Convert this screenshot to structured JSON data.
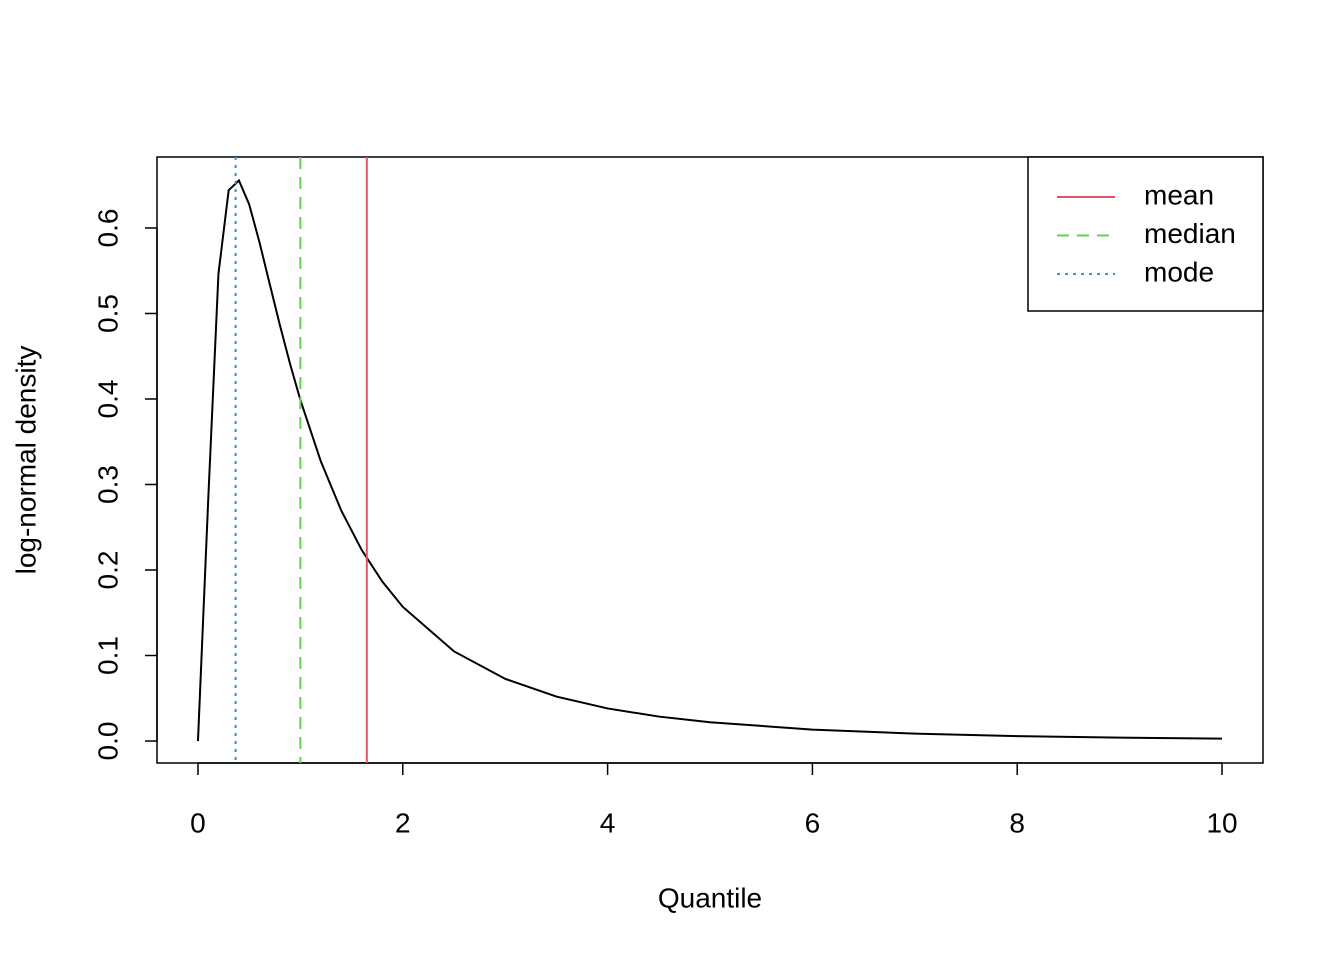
{
  "chart_data": {
    "type": "line",
    "x_label": "Quantile",
    "y_label": "log-normal density",
    "x": [
      0,
      0.1,
      0.2,
      0.3,
      0.4,
      0.5,
      0.6,
      0.7,
      0.8,
      0.9,
      1.0,
      1.2,
      1.4,
      1.6,
      1.8,
      2.0,
      2.5,
      3,
      3.5,
      4,
      4.5,
      5,
      6,
      7,
      8,
      9,
      10
    ],
    "series": [
      {
        "color": "#000000",
        "values": [
          0,
          0.2818,
          0.5463,
          0.6442,
          0.6555,
          0.6276,
          0.5836,
          0.5348,
          0.4864,
          0.4408,
          0.3989,
          0.327,
          0.2693,
          0.2232,
          0.1865,
          0.1569,
          0.1049,
          0.0727,
          0.052,
          0.0381,
          0.0286,
          0.0219,
          0.0134,
          0.0086,
          0.0057,
          0.004,
          0.0028
        ]
      }
    ],
    "vlines": [
      {
        "name": "mean",
        "x": 1.6487,
        "color": "#df536b",
        "linestyle": "solid"
      },
      {
        "name": "median",
        "x": 1,
        "color": "#61d04f",
        "linestyle": "dashed"
      },
      {
        "name": "mode",
        "x": 0.3679,
        "color": "#2297e6",
        "linestyle": "dotted"
      }
    ],
    "xlim": [
      -0.4,
      10.4
    ],
    "ylim": [
      -0.0257,
      0.683
    ],
    "xticks": [
      0,
      2,
      4,
      6,
      8,
      10
    ],
    "yticks": [
      {
        "value": 0,
        "label": "0.0"
      },
      0.1,
      0.2,
      0.3,
      0.4,
      0.5,
      0.6
    ],
    "legend": "top-right"
  }
}
